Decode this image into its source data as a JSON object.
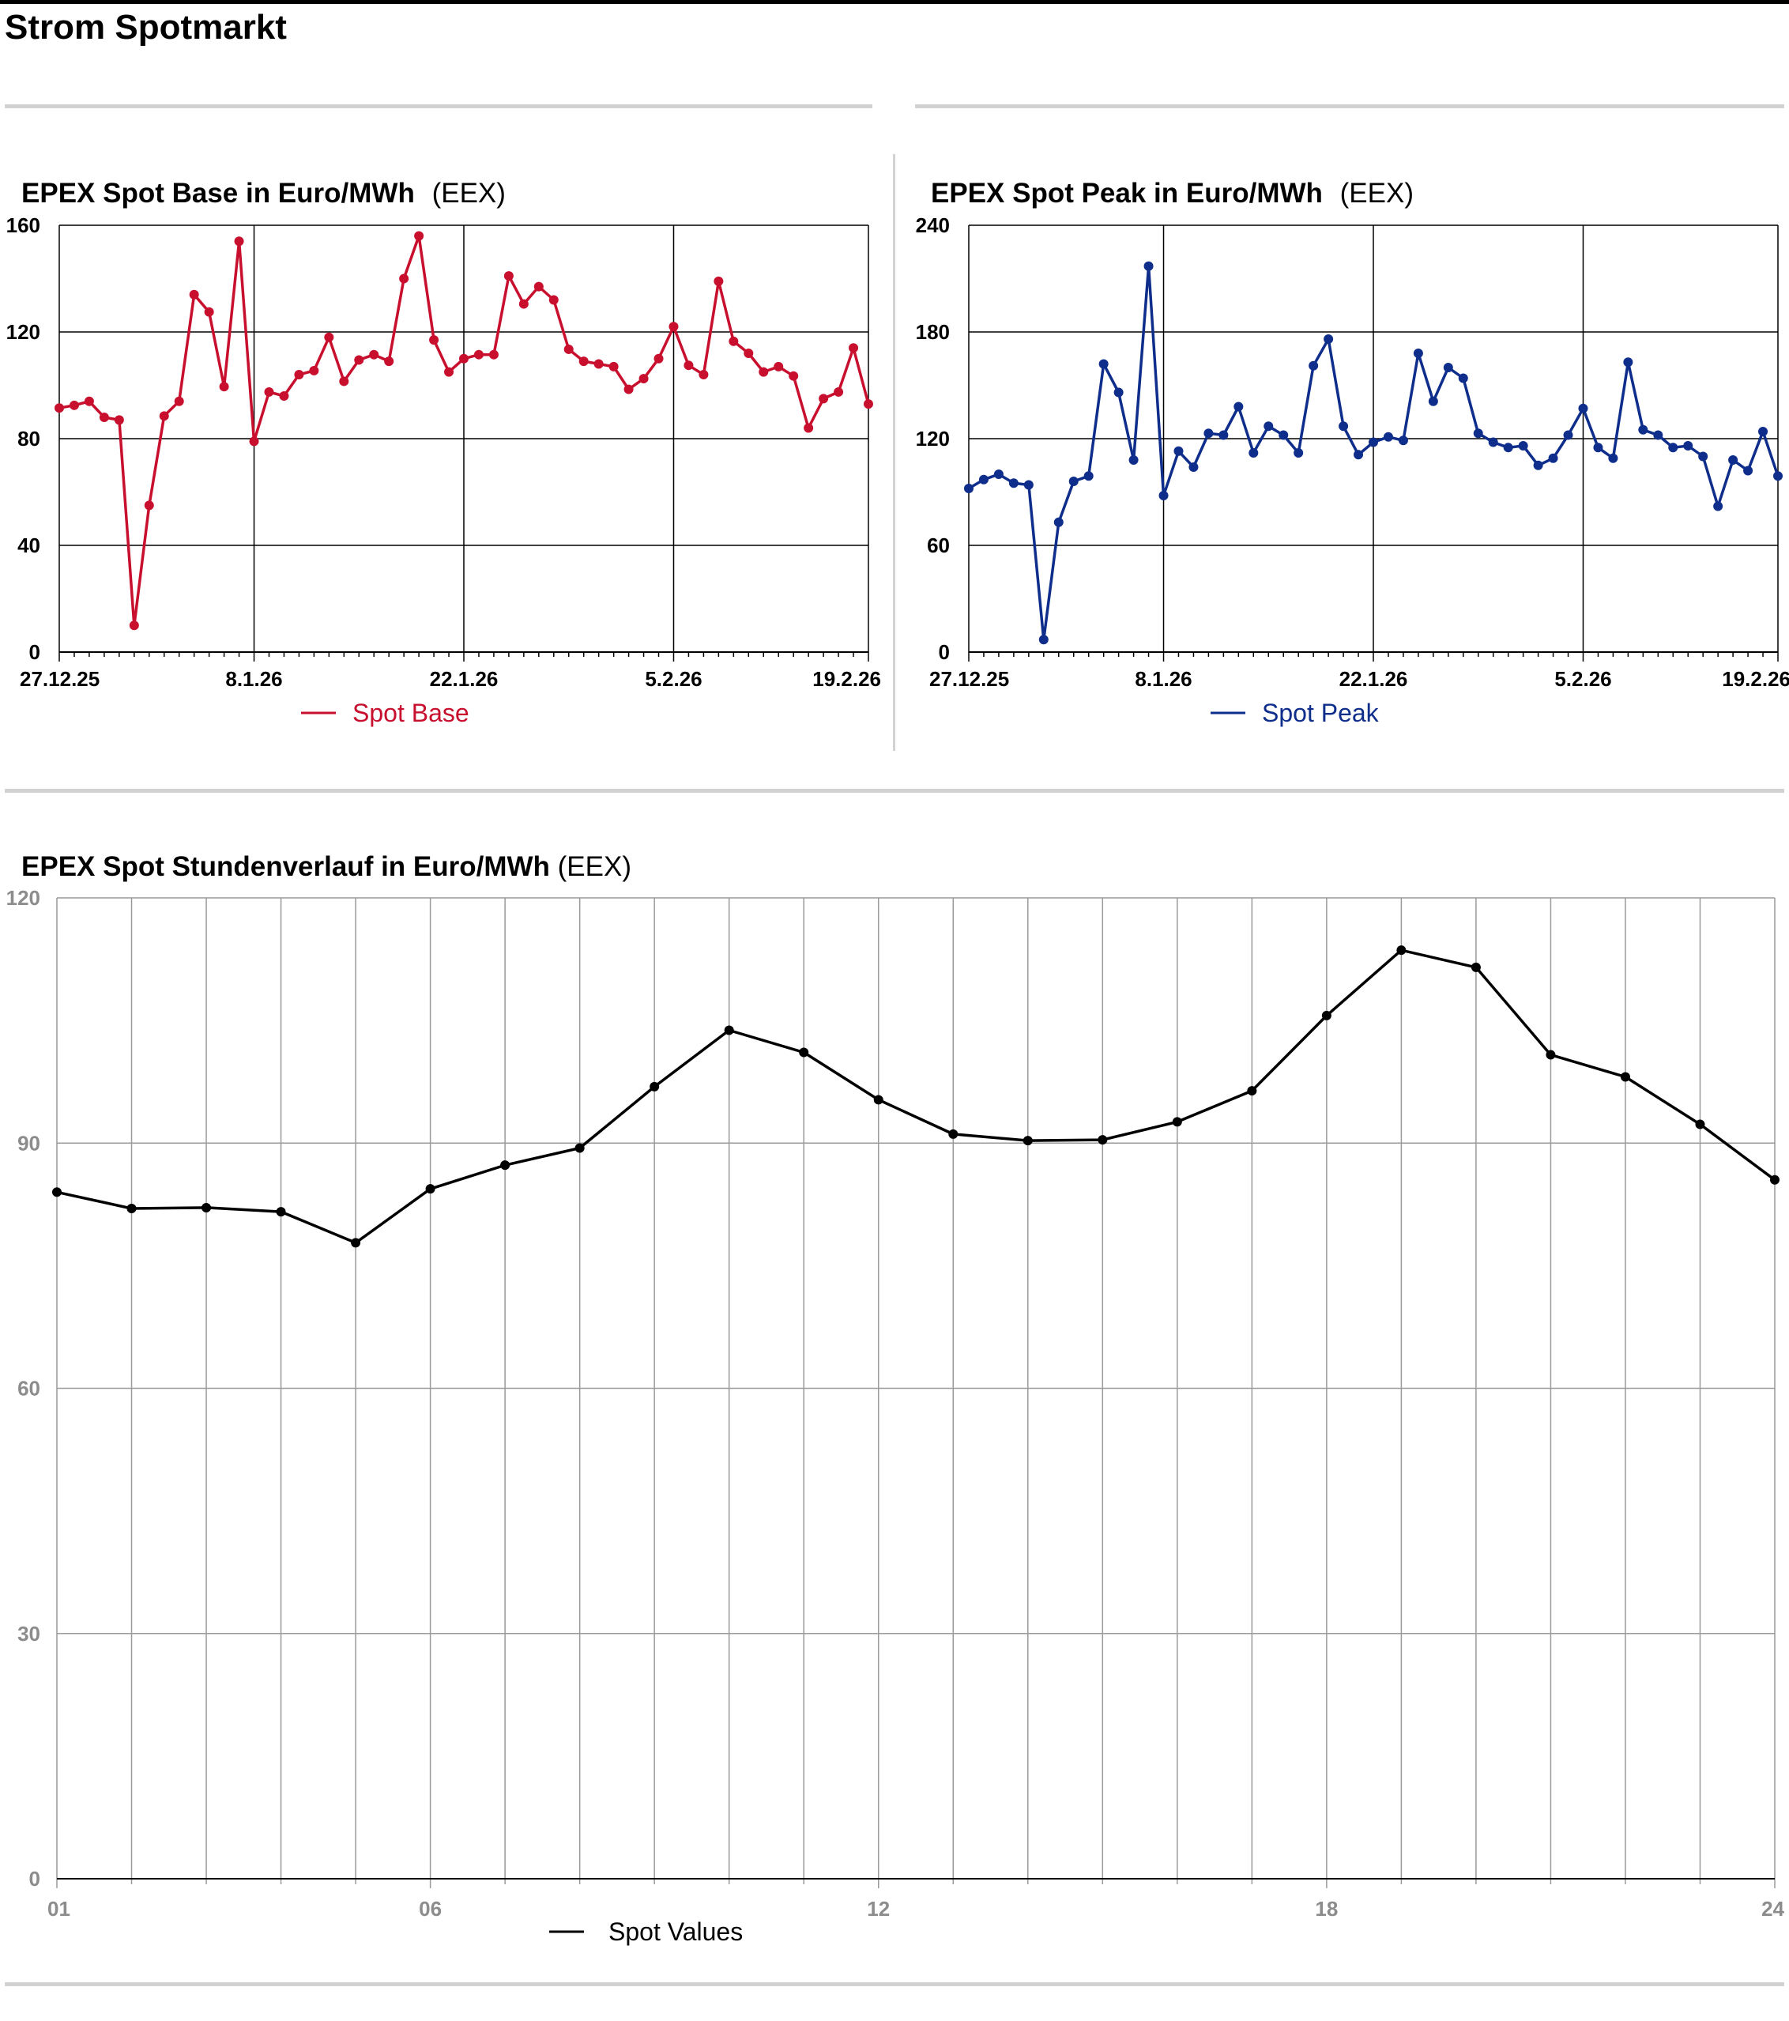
{
  "page": {
    "title": "Strom Spotmarkt"
  },
  "chart_data": [
    {
      "id": "base",
      "type": "line",
      "title": "EPEX Spot Base in Euro/MWh",
      "source": "(EEX)",
      "color": "#c8102e",
      "ylim": [
        0,
        160
      ],
      "yticks": [
        "0",
        "40",
        "80",
        "120",
        "160"
      ],
      "xticks": [
        "27.12.25",
        "8.1.26",
        "22.1.26",
        "5.2.26",
        "19.2.26"
      ],
      "grid": true,
      "legend": "bottom-center",
      "series": [
        {
          "name": "Spot Base",
          "values": [
            91.5,
            92.5,
            94,
            88,
            87,
            10,
            55,
            88.5,
            94,
            134,
            127.5,
            99.5,
            154,
            79,
            97.5,
            96,
            104,
            105.5,
            118,
            101.5,
            109.5,
            111.5,
            109,
            140,
            156,
            117,
            105,
            110,
            111.5,
            111.5,
            141,
            130.5,
            137,
            132,
            113.5,
            109,
            108,
            107,
            98.5,
            102.5,
            110,
            122,
            107.5,
            104,
            139,
            116.5,
            112,
            105,
            107,
            103.5,
            84,
            95,
            97.5,
            114,
            93
          ]
        }
      ]
    },
    {
      "id": "peak",
      "type": "line",
      "title": "EPEX Spot Peak in Euro/MWh",
      "source": "(EEX)",
      "color": "#0f2e8c",
      "ylim": [
        0,
        240
      ],
      "yticks": [
        "0",
        "60",
        "120",
        "180",
        "240"
      ],
      "xticks": [
        "27.12.25",
        "8.1.26",
        "22.1.26",
        "5.2.26",
        "19.2.26"
      ],
      "grid": true,
      "legend": "bottom-center",
      "series": [
        {
          "name": "Spot Peak",
          "values": [
            92,
            97,
            100,
            95,
            94,
            7,
            73,
            96,
            99,
            162,
            146,
            108,
            217,
            88,
            113,
            104,
            123,
            122,
            138,
            112,
            127,
            122,
            112,
            161,
            176,
            127,
            111,
            118,
            121,
            119,
            168,
            141,
            160,
            154,
            123,
            118,
            115,
            116,
            105,
            109,
            122,
            137,
            115,
            109,
            163,
            125,
            122,
            115,
            116,
            110,
            82,
            108,
            102,
            124,
            99
          ]
        }
      ]
    },
    {
      "id": "hourly",
      "type": "line",
      "title": "EPEX Spot Stundenverlauf in Euro/MWh",
      "source": "(EEX)",
      "color": "#000000",
      "ylim": [
        0,
        120
      ],
      "yticks": [
        "0",
        "30",
        "60",
        "90",
        "120"
      ],
      "x": [
        1,
        2,
        3,
        4,
        5,
        6,
        7,
        8,
        9,
        10,
        11,
        12,
        13,
        14,
        15,
        16,
        17,
        18,
        19,
        20,
        21,
        22,
        23,
        24
      ],
      "xticks": [
        "01",
        "06",
        "12",
        "18",
        "24"
      ],
      "grid": true,
      "legend": "bottom-center",
      "series": [
        {
          "name": "Spot Values",
          "values": [
            84,
            82,
            82.1,
            81.6,
            77.8,
            84.4,
            87.3,
            89.4,
            96.9,
            103.8,
            101.1,
            95.3,
            91.1,
            90.3,
            90.4,
            92.6,
            96.4,
            105.6,
            113.6,
            111.5,
            100.8,
            98.1,
            92.3,
            85.5
          ]
        }
      ]
    }
  ]
}
